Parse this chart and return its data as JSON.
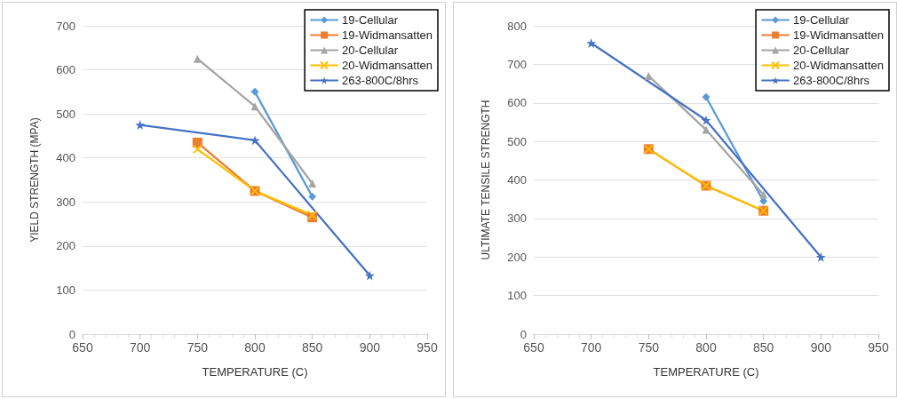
{
  "chart_data": [
    {
      "type": "line",
      "xlabel": "TEMPERATURE (C)",
      "ylabel": "YIELD STRENGTH (MPA)",
      "xlim": [
        650,
        950
      ],
      "xticks": [
        650,
        700,
        750,
        800,
        850,
        900,
        950
      ],
      "ylim": [
        0,
        700
      ],
      "yticks": [
        0,
        100,
        200,
        300,
        400,
        500,
        600,
        700
      ],
      "grid": "y",
      "legend": "top right",
      "series": [
        {
          "name": "19-Cellular",
          "color": "#5b9bd5",
          "marker": "diamond",
          "x": [
            800,
            850
          ],
          "values": [
            550,
            312
          ]
        },
        {
          "name": "19-Widmansatten",
          "color": "#ed7d31",
          "marker": "square",
          "x": [
            750,
            800,
            850
          ],
          "values": [
            435,
            325,
            265
          ]
        },
        {
          "name": "20-Cellular",
          "color": "#a5a5a5",
          "marker": "triangle",
          "x": [
            750,
            800,
            850
          ],
          "values": [
            625,
            517,
            342
          ]
        },
        {
          "name": "20-Widmansatten",
          "color": "#ffc000",
          "marker": "cross",
          "x": [
            750,
            800,
            850
          ],
          "values": [
            420,
            325,
            270
          ]
        },
        {
          "name": "263-800C/8hrs",
          "color": "#4472c4",
          "marker": "star",
          "x": [
            700,
            800,
            900
          ],
          "values": [
            475,
            440,
            133
          ]
        }
      ]
    },
    {
      "type": "line",
      "xlabel": "TEMPERATURE (C)",
      "ylabel": "ULTIMATE TENSILE STRENGTH",
      "xlim": [
        650,
        950
      ],
      "xticks": [
        650,
        700,
        750,
        800,
        850,
        900,
        950
      ],
      "ylim": [
        0,
        800
      ],
      "yticks": [
        0,
        100,
        200,
        300,
        400,
        500,
        600,
        700,
        800
      ],
      "grid": "y",
      "legend": "top right",
      "series": [
        {
          "name": "19-Cellular",
          "color": "#5b9bd5",
          "marker": "diamond",
          "x": [
            800,
            850
          ],
          "values": [
            615,
            345
          ]
        },
        {
          "name": "19-Widmansatten",
          "color": "#ed7d31",
          "marker": "square",
          "x": [
            750,
            800,
            850
          ],
          "values": [
            480,
            385,
            320
          ]
        },
        {
          "name": "20-Cellular",
          "color": "#a5a5a5",
          "marker": "triangle",
          "x": [
            750,
            800,
            850
          ],
          "values": [
            670,
            530,
            362
          ]
        },
        {
          "name": "20-Widmansatten",
          "color": "#ffc000",
          "marker": "cross",
          "x": [
            750,
            800,
            850
          ],
          "values": [
            480,
            385,
            320
          ]
        },
        {
          "name": "263-800C/8hrs",
          "color": "#4472c4",
          "marker": "star",
          "x": [
            700,
            800,
            900
          ],
          "values": [
            755,
            555,
            200
          ]
        }
      ]
    }
  ]
}
